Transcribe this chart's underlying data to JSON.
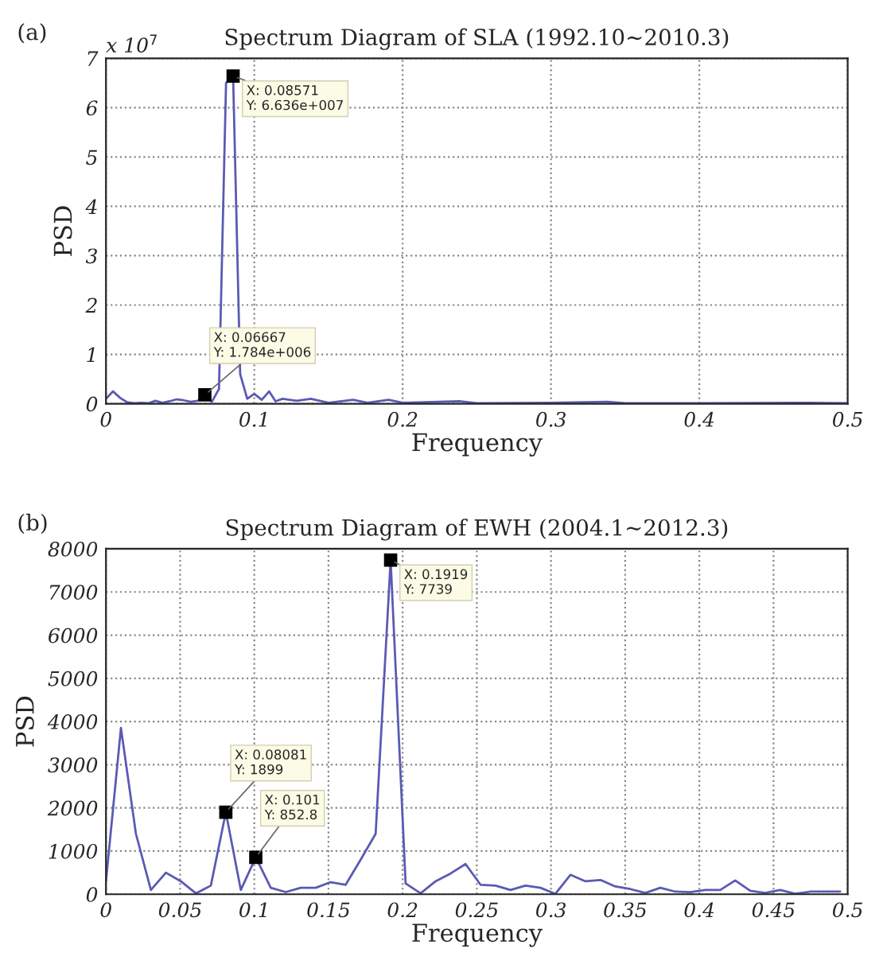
{
  "chart_data": [
    {
      "type": "line",
      "title": "Spectrum Diagram of SLA (1992.10~2010.3)",
      "xlabel": "Frequency",
      "ylabel": "PSD",
      "x": [
        0,
        0.00476,
        0.0095,
        0.0143,
        0.019,
        0.0238,
        0.0286,
        0.0333,
        0.0381,
        0.0429,
        0.0476,
        0.0524,
        0.0571,
        0.0619,
        0.06667,
        0.0714,
        0.07619,
        0.08095,
        0.08571,
        0.09048,
        0.09524,
        0.1,
        0.105,
        0.11,
        0.1143,
        0.119,
        0.1286,
        0.1381,
        0.15,
        0.1667,
        0.1762,
        0.1905,
        0.2,
        0.2381,
        0.25,
        0.3,
        0.3381,
        0.35,
        0.4,
        0.4667,
        0.5
      ],
      "series": [
        {
          "color": "#5a5ab4",
          "values": [
            0.1,
            0.25,
            0.12,
            0.03,
            0.01,
            0.02,
            0.01,
            0.06,
            0.02,
            0.05,
            0.09,
            0.07,
            0.04,
            0.06,
            0.18,
            0.04,
            0.3,
            6.5,
            6.64,
            0.6,
            0.1,
            0.2,
            0.08,
            0.25,
            0.05,
            0.1,
            0.06,
            0.1,
            0.02,
            0.08,
            0.02,
            0.08,
            0.02,
            0.05,
            0.01,
            0.02,
            0.04,
            0.01,
            0.01,
            0.02,
            0.01
          ]
        }
      ],
      "xlim": [
        0,
        0.5
      ],
      "xticks": [
        0,
        0.1,
        0.2,
        0.3,
        0.4,
        0.5
      ],
      "ylim": [
        0,
        7
      ],
      "yticks": [
        0,
        1,
        2,
        3,
        4,
        5,
        6,
        7
      ],
      "grid": true,
      "line_style": "solid",
      "annotations": [
        "(a)",
        "x 10$^{7}$",
        {
          "text": "X: 0.08571\nY: 6.636e+007",
          "x": 0.08571,
          "y": 6.64
        },
        {
          "text": "X: 0.06667\nY: 1.784e+006",
          "x": 0.06667,
          "y": 0.18
        }
      ]
    },
    {
      "type": "line",
      "title": "Spectrum Diagram of EWH (2004.1~2012.3)",
      "xlabel": "Frequency",
      "ylabel": "PSD",
      "x": [
        0,
        0.0101,
        0.0202,
        0.0303,
        0.0404,
        0.0505,
        0.0606,
        0.0707,
        0.08081,
        0.0909,
        0.101,
        0.1111,
        0.1212,
        0.1313,
        0.1414,
        0.1515,
        0.1616,
        0.1717,
        0.1818,
        0.1919,
        0.202,
        0.2121,
        0.2222,
        0.2323,
        0.2424,
        0.2525,
        0.2626,
        0.2727,
        0.2828,
        0.2929,
        0.303,
        0.3131,
        0.3232,
        0.3333,
        0.3434,
        0.3535,
        0.3636,
        0.3737,
        0.3838,
        0.3939,
        0.404,
        0.4141,
        0.4242,
        0.4343,
        0.4444,
        0.4545,
        0.4646,
        0.4747,
        0.4848,
        0.4949
      ],
      "series": [
        {
          "color": "#5a5ab4",
          "values": [
            300,
            3850,
            1400,
            100,
            500,
            300,
            20,
            200,
            1899,
            100,
            852.8,
            150,
            50,
            150,
            150,
            280,
            220,
            800,
            1400,
            7739,
            250,
            20,
            300,
            480,
            700,
            220,
            200,
            100,
            200,
            150,
            10,
            450,
            300,
            330,
            180,
            120,
            30,
            150,
            60,
            50,
            100,
            100,
            320,
            80,
            30,
            100,
            10,
            60,
            60,
            60
          ]
        }
      ],
      "xlim": [
        0,
        0.5
      ],
      "xticks": [
        0,
        0.05,
        0.1,
        0.15,
        0.2,
        0.25,
        0.3,
        0.35,
        0.4,
        0.45,
        0.5
      ],
      "ylim": [
        0,
        8000
      ],
      "yticks": [
        0,
        1000,
        2000,
        3000,
        4000,
        5000,
        6000,
        7000,
        8000
      ],
      "grid": true,
      "line_style": "solid",
      "annotations": [
        "(b)",
        {
          "text": "X: 0.08081\nY: 1899",
          "x": 0.08081,
          "y": 1899
        },
        {
          "text": "X: 0.101\nY: 852.8",
          "x": 0.101,
          "y": 852.8
        },
        {
          "text": "X: 0.1919\nY: 7739",
          "x": 0.1919,
          "y": 7739
        }
      ]
    }
  ]
}
